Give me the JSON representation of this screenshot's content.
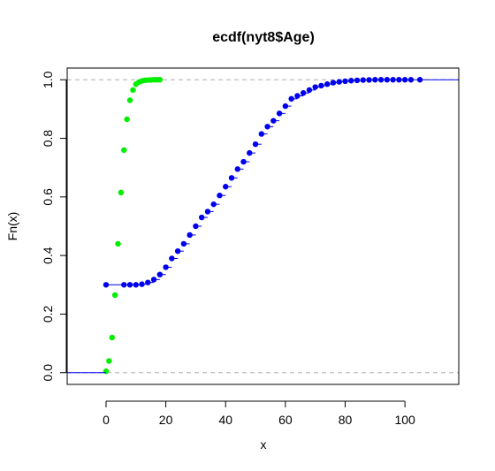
{
  "chart_data": {
    "type": "scatter",
    "title": "ecdf(nyt8$Age)",
    "xlabel": "x",
    "ylabel": "Fn(x)",
    "xlim": [
      -13,
      118
    ],
    "ylim": [
      -0.04,
      1.04
    ],
    "x_ticks": [
      0,
      20,
      40,
      60,
      80,
      100
    ],
    "y_ticks": [
      0.0,
      0.2,
      0.4,
      0.6,
      0.8,
      1.0
    ],
    "x_tick_labels": [
      "0",
      "20",
      "40",
      "60",
      "80",
      "100"
    ],
    "y_tick_labels": [
      "0.0",
      "0.2",
      "0.4",
      "0.6",
      "0.8",
      "1.0"
    ],
    "reference_lines": [
      0,
      1
    ],
    "series": [
      {
        "color": "#00ee00",
        "x": [
          0,
          1,
          2,
          3,
          4,
          5,
          6,
          7,
          8,
          9,
          10,
          11,
          12,
          13,
          14,
          15,
          16,
          17,
          18
        ],
        "y": [
          0.005,
          0.04,
          0.12,
          0.265,
          0.44,
          0.615,
          0.76,
          0.865,
          0.93,
          0.965,
          0.985,
          0.992,
          0.996,
          0.998,
          0.999,
          0.9995,
          1.0,
          1.0,
          1.0
        ]
      },
      {
        "color": "#0000ee",
        "x": [
          0,
          6,
          8,
          10,
          12,
          14,
          16,
          18,
          20,
          22,
          24,
          26,
          28,
          30,
          32,
          34,
          36,
          38,
          40,
          42,
          44,
          46,
          48,
          50,
          52,
          54,
          56,
          58,
          60,
          62,
          64,
          66,
          68,
          70,
          72,
          74,
          76,
          78,
          80,
          82,
          84,
          86,
          88,
          90,
          92,
          94,
          96,
          98,
          100,
          102,
          105
        ],
        "y": [
          0.3,
          0.3,
          0.3,
          0.3,
          0.302,
          0.308,
          0.318,
          0.335,
          0.36,
          0.39,
          0.415,
          0.44,
          0.47,
          0.5,
          0.53,
          0.55,
          0.575,
          0.605,
          0.635,
          0.665,
          0.695,
          0.72,
          0.75,
          0.78,
          0.815,
          0.84,
          0.86,
          0.885,
          0.91,
          0.935,
          0.945,
          0.955,
          0.965,
          0.975,
          0.98,
          0.985,
          0.99,
          0.993,
          0.995,
          0.997,
          0.998,
          0.999,
          0.9995,
          1.0,
          1.0,
          1.0,
          1.0,
          1.0,
          1.0,
          1.0,
          1.0
        ]
      }
    ]
  }
}
